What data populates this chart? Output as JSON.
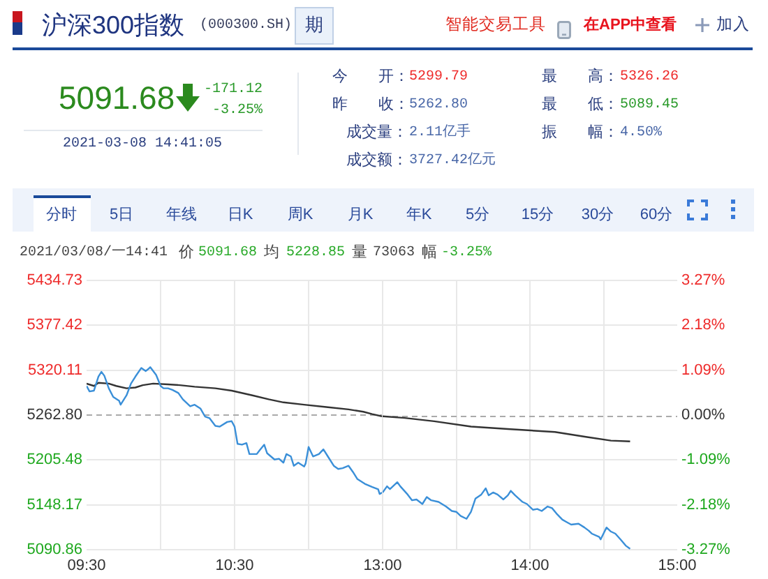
{
  "chart_data": [
    {
      "type": "line",
      "title": "沪深300指数",
      "subtitle": "(000300.SH)",
      "annotations": [
        "期",
        "智能交易工具",
        "在APP中查看",
        "加入",
        "5091.68",
        "-171.12",
        "-3.25%",
        "2021-03-08 14:41:05",
        "今　　开：",
        "5299.79",
        "昨　　收：",
        "5262.80",
        "成交量：",
        "2.11亿手",
        "成交额：",
        "3727.42亿元",
        "最　　高：",
        "5326.26",
        "最　　低：",
        "5089.45",
        "振　　幅：",
        "4.50%",
        "分时",
        "5日",
        "年线",
        "日K",
        "周K",
        "月K",
        "年K",
        "5分",
        "15分",
        "30分",
        "60分",
        "2021/03/08/一14:41",
        "价",
        "5091.68",
        "均",
        "5228.85",
        "量",
        "73063",
        "幅",
        "-3.25%"
      ],
      "xlim": [
        9.5,
        11.5
      ],
      "xticks": [
        {
          "value": 9.5,
          "label": "09:30"
        },
        {
          "value": 10,
          "label": null
        },
        {
          "value": 10.5,
          "label": "10:30"
        },
        {
          "value": 11,
          "label": null
        }
      ],
      "ylim": [
        5090.86,
        5434.73
      ],
      "yticks": [
        5090.86,
        5148.17,
        5205.48,
        {
          "value": 5262.8,
          "label": "5262.80"
        },
        5320.11,
        5377.42,
        5434.73
      ],
      "grid": true,
      "ref_lines": [
        {
          "axis": "y",
          "value": 5262.8,
          "color": "#aaaaaa",
          "line_style": "dashed"
        }
      ],
      "series": [
        {
          "color": "#3a8fd8",
          "x": [
            9.5,
            9.52,
            9.55,
            9.58,
            9.6,
            9.62,
            9.65,
            9.68,
            9.72,
            9.73,
            9.77,
            9.8,
            9.83,
            9.87,
            9.9,
            9.92,
            9.93,
            9.97,
            10,
            10.02,
            10.05,
            10.08,
            10.12,
            10.15,
            10.2,
            10.23,
            10.27,
            10.3,
            10.33,
            10.37,
            10.4,
            10.45,
            10.48,
            10.5,
            10.52,
            10.55,
            10.58,
            10.6,
            10.65,
            10.67,
            10.7,
            10.72,
            10.77,
            10.8,
            10.83,
            10.85,
            10.88,
            10.9,
            10.93,
            10.97,
            10.98,
            11,
            11.03,
            11.07,
            11.1,
            11.13,
            11.17,
            11.2,
            11.23,
            11.27,
            11.3,
            11.33,
            11.38,
            11.43,
            11.47,
            11.48,
            11.5
          ],
          "values": [
            5300,
            5293,
            5294,
            5312,
            5318,
            5313,
            5297,
            5286,
            5281,
            5276,
            5288,
            5303,
            5312,
            5323,
            5319,
            5322,
            5324,
            5314,
            5300,
            5297,
            5297,
            5295,
            5291,
            5283,
            5274,
            5276,
            5271,
            5261,
            5259,
            5249,
            5248,
            5254,
            5255,
            5248,
            5226,
            5225,
            5227,
            5213,
            5213,
            5218,
            5225,
            5214,
            5206,
            5207,
            5202,
            5213,
            5210,
            5198,
            5202,
            5197,
            5201,
            5222,
            5210,
            5213,
            5219,
            5210,
            5198,
            5194,
            5195,
            5198,
            5190,
            5181,
            5175,
            5171,
            5168,
            5162,
            5164
          ]
        },
        {
          "color": "#333333",
          "x": [
            9.5,
            9.55,
            9.58,
            9.65,
            9.7,
            9.77,
            9.83,
            9.88,
            9.95,
            10.05,
            10.13,
            10.23,
            10.37,
            10.48,
            10.62,
            10.73,
            10.83,
            10.97,
            11.12,
            11.27,
            11.37,
            11.43,
            11.5
          ],
          "values": [
            5303,
            5300,
            5304,
            5303,
            5300,
            5297,
            5298,
            5301,
            5303,
            5302,
            5301,
            5299,
            5297,
            5294,
            5288,
            5283,
            5279,
            5276,
            5273,
            5270,
            5267,
            5264,
            5261
          ]
        }
      ]
    },
    {
      "type": "line",
      "xlim": [
        13,
        15
      ],
      "xticks": [
        {
          "value": 13,
          "label": "13:00"
        },
        {
          "value": 13.5,
          "label": null
        },
        {
          "value": 14,
          "label": "14:00"
        },
        {
          "value": 14.5,
          "label": null
        },
        {
          "value": 15,
          "label": "15:00"
        }
      ],
      "ylim": [
        -3.27,
        3.27
      ],
      "yticks": [
        {
          "value": -3.27,
          "label": "-3.27%"
        },
        {
          "value": -2.18,
          "label": "-2.18%"
        },
        {
          "value": -1.09,
          "label": "-1.09%"
        },
        {
          "value": 0,
          "label": "0.00%"
        },
        {
          "value": 1.09,
          "label": "1.09%"
        },
        {
          "value": 2.18,
          "label": "2.18%"
        },
        {
          "value": 3.27,
          "label": "3.27%"
        }
      ],
      "grid": true,
      "ref_lines": [
        {
          "axis": "y",
          "value": 0,
          "color": "#aaaaaa",
          "line_style": "dashed"
        }
      ],
      "series": [
        {
          "color": "#3a8fd8",
          "x": [
            13,
            13.03,
            13.05,
            13.1,
            13.12,
            13.17,
            13.2,
            13.23,
            13.27,
            13.3,
            13.33,
            13.38,
            13.43,
            13.47,
            13.5,
            13.53,
            13.57,
            13.6,
            13.63,
            13.67,
            13.7,
            13.72,
            13.75,
            13.78,
            13.82,
            13.85,
            13.87,
            13.9,
            13.95,
            13.98,
            14.02,
            14.05,
            14.08,
            14.12,
            14.15,
            14.18,
            14.22,
            14.25,
            14.28,
            14.33,
            14.37,
            14.4,
            14.42,
            14.47,
            14.48,
            14.52,
            14.55,
            14.58,
            14.62,
            14.65,
            14.68
          ],
          "values": [
            -1.88,
            -1.73,
            -1.8,
            -1.63,
            -1.73,
            -1.93,
            -2.07,
            -2.05,
            -2.16,
            -1.99,
            -2.07,
            -2.11,
            -2.22,
            -2.33,
            -2.35,
            -2.45,
            -2.52,
            -2.35,
            -2.03,
            -1.93,
            -1.78,
            -1.95,
            -1.88,
            -1.93,
            -2.05,
            -1.95,
            -1.84,
            -1.95,
            -2.11,
            -2.16,
            -2.3,
            -2.28,
            -2.33,
            -2.22,
            -2.26,
            -2.39,
            -2.54,
            -2.6,
            -2.66,
            -2.64,
            -2.73,
            -2.81,
            -2.88,
            -2.96,
            -3.02,
            -2.73,
            -2.83,
            -2.88,
            -3.04,
            -3.17,
            -3.25
          ]
        },
        {
          "color": "#333333",
          "x": [
            13,
            13.15,
            13.35,
            13.6,
            13.85,
            14.17,
            14.38,
            14.55,
            14.68
          ],
          "values": [
            -0.03,
            -0.07,
            -0.15,
            -0.28,
            -0.34,
            -0.41,
            -0.53,
            -0.62,
            -0.64
          ]
        }
      ]
    }
  ]
}
